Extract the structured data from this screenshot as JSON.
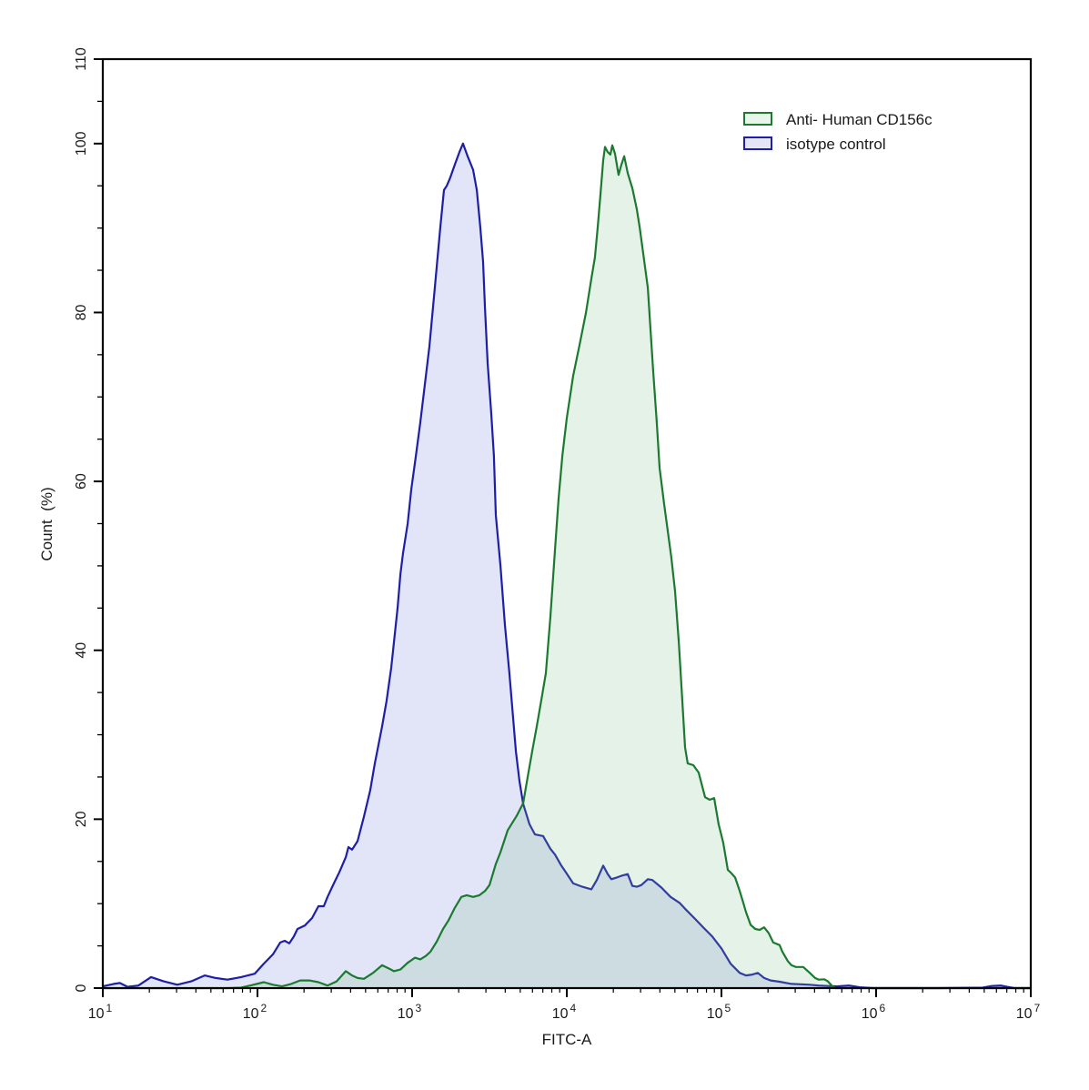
{
  "chart_data": {
    "type": "area",
    "title": "",
    "xlabel": "FITC-A",
    "ylabel": "Count  (%)",
    "x_scale": "log",
    "x_log10_range": [
      1,
      7
    ],
    "x_decade_ticks": [
      1,
      2,
      3,
      4,
      5,
      6,
      7
    ],
    "x_tick_base": "10",
    "ylim": [
      0,
      110
    ],
    "y_labeled_ticks": [
      0,
      20,
      40,
      60,
      80,
      100,
      110
    ],
    "y_minor_step": 5,
    "grid": false,
    "frame_color": "#000000",
    "legend_position": "top-right",
    "legend": [
      {
        "label": "Anti- Human CD156c",
        "line_color": "#1c7a30",
        "swatch_fill": "#e9f4ea"
      },
      {
        "label": "isotype control",
        "line_color": "#1e1fa6",
        "swatch_fill": "#e4e6f8"
      }
    ],
    "series": [
      {
        "name": "isotype control",
        "line_color": "#1e1fa6",
        "fill_color": "rgba(110,118,222,0.20)",
        "points_log10x_pct": [
          [
            1.0,
            0.2
          ],
          [
            1.071,
            0.5
          ],
          [
            1.11,
            0.6
          ],
          [
            1.16,
            0.15
          ],
          [
            1.23,
            0.3
          ],
          [
            1.312,
            1.3
          ],
          [
            1.394,
            0.8
          ],
          [
            1.482,
            0.4
          ],
          [
            1.571,
            0.8
          ],
          [
            1.659,
            1.5
          ],
          [
            1.729,
            1.2
          ],
          [
            1.806,
            1.0
          ],
          [
            1.894,
            1.3
          ],
          [
            1.982,
            1.7
          ],
          [
            2.041,
            2.9
          ],
          [
            2.1,
            4.0
          ],
          [
            2.147,
            5.4
          ],
          [
            2.176,
            5.6
          ],
          [
            2.206,
            5.3
          ],
          [
            2.235,
            6.1
          ],
          [
            2.259,
            7.0
          ],
          [
            2.306,
            7.4
          ],
          [
            2.353,
            8.3
          ],
          [
            2.394,
            9.7
          ],
          [
            2.429,
            9.7
          ],
          [
            2.453,
            10.8
          ],
          [
            2.494,
            12.4
          ],
          [
            2.529,
            13.7
          ],
          [
            2.571,
            15.5
          ],
          [
            2.588,
            16.7
          ],
          [
            2.612,
            16.4
          ],
          [
            2.647,
            17.4
          ],
          [
            2.688,
            20.3
          ],
          [
            2.729,
            23.4
          ],
          [
            2.759,
            26.6
          ],
          [
            2.806,
            31.0
          ],
          [
            2.835,
            34.0
          ],
          [
            2.865,
            38.0
          ],
          [
            2.906,
            45.0
          ],
          [
            2.924,
            49.0
          ],
          [
            2.941,
            51.5
          ],
          [
            2.971,
            55.0
          ],
          [
            2.994,
            59.0
          ],
          [
            3.024,
            63.0
          ],
          [
            3.053,
            67.0
          ],
          [
            3.076,
            70.5
          ],
          [
            3.112,
            76.0
          ],
          [
            3.147,
            83.0
          ],
          [
            3.182,
            90.0
          ],
          [
            3.206,
            94.5
          ],
          [
            3.224,
            95.0
          ],
          [
            3.247,
            96.0
          ],
          [
            3.276,
            97.5
          ],
          [
            3.306,
            99.0
          ],
          [
            3.329,
            100.0
          ],
          [
            3.359,
            98.5
          ],
          [
            3.394,
            96.9
          ],
          [
            3.418,
            94.5
          ],
          [
            3.441,
            90.0
          ],
          [
            3.459,
            86.0
          ],
          [
            3.471,
            80.5
          ],
          [
            3.488,
            74.0
          ],
          [
            3.512,
            68.0
          ],
          [
            3.529,
            63.0
          ],
          [
            3.541,
            56.0
          ],
          [
            3.571,
            50.0
          ],
          [
            3.6,
            43.0
          ],
          [
            3.629,
            37.3
          ],
          [
            3.653,
            32.0
          ],
          [
            3.671,
            28.0
          ],
          [
            3.694,
            24.5
          ],
          [
            3.718,
            21.8
          ],
          [
            3.759,
            19.4
          ],
          [
            3.794,
            18.2
          ],
          [
            3.847,
            18.0
          ],
          [
            3.894,
            16.5
          ],
          [
            3.924,
            15.8
          ],
          [
            3.965,
            14.5
          ],
          [
            3.994,
            13.7
          ],
          [
            4.041,
            12.4
          ],
          [
            4.1,
            12.0
          ],
          [
            4.159,
            11.7
          ],
          [
            4.194,
            12.8
          ],
          [
            4.235,
            14.5
          ],
          [
            4.265,
            13.5
          ],
          [
            4.288,
            12.9
          ],
          [
            4.324,
            13.1
          ],
          [
            4.353,
            13.3
          ],
          [
            4.394,
            13.5
          ],
          [
            4.424,
            12.1
          ],
          [
            4.453,
            12.0
          ],
          [
            4.482,
            12.2
          ],
          [
            4.524,
            12.9
          ],
          [
            4.553,
            12.8
          ],
          [
            4.612,
            11.9
          ],
          [
            4.671,
            10.8
          ],
          [
            4.729,
            10.1
          ],
          [
            4.765,
            9.4
          ],
          [
            4.824,
            8.3
          ],
          [
            4.882,
            7.2
          ],
          [
            4.941,
            6.1
          ],
          [
            5.0,
            4.7
          ],
          [
            5.059,
            2.9
          ],
          [
            5.118,
            1.8
          ],
          [
            5.159,
            1.5
          ],
          [
            5.2,
            1.6
          ],
          [
            5.235,
            1.8
          ],
          [
            5.276,
            1.2
          ],
          [
            5.318,
            0.9
          ],
          [
            5.376,
            0.75
          ],
          [
            5.453,
            0.5
          ],
          [
            5.512,
            0.45
          ],
          [
            5.571,
            0.4
          ],
          [
            5.629,
            0.3
          ],
          [
            5.688,
            0.25
          ],
          [
            5.747,
            0.2
          ],
          [
            5.824,
            0.3
          ],
          [
            5.894,
            0.1
          ],
          [
            5.982,
            0.0
          ],
          [
            6.4,
            0.0
          ],
          [
            6.688,
            0.05
          ],
          [
            6.747,
            0.25
          ],
          [
            6.806,
            0.3
          ],
          [
            6.847,
            0.15
          ],
          [
            6.894,
            0.0
          ],
          [
            7.0,
            0.0
          ]
        ]
      },
      {
        "name": "Anti- Human CD156c",
        "line_color": "#1c7a30",
        "fill_color": "rgba(125,190,135,0.20)",
        "points_log10x_pct": [
          [
            1.0,
            0.0
          ],
          [
            1.8,
            0.0
          ],
          [
            1.894,
            0.05
          ],
          [
            1.953,
            0.3
          ],
          [
            2.041,
            0.7
          ],
          [
            2.1,
            0.4
          ],
          [
            2.159,
            0.2
          ],
          [
            2.218,
            0.5
          ],
          [
            2.276,
            0.9
          ],
          [
            2.335,
            0.9
          ],
          [
            2.394,
            0.7
          ],
          [
            2.453,
            0.3
          ],
          [
            2.512,
            0.8
          ],
          [
            2.571,
            2.0
          ],
          [
            2.612,
            1.5
          ],
          [
            2.647,
            1.2
          ],
          [
            2.688,
            1.1
          ],
          [
            2.747,
            1.8
          ],
          [
            2.806,
            2.7
          ],
          [
            2.853,
            2.3
          ],
          [
            2.882,
            2.0
          ],
          [
            2.924,
            2.2
          ],
          [
            2.971,
            3.0
          ],
          [
            3.018,
            3.6
          ],
          [
            3.053,
            3.4
          ],
          [
            3.088,
            3.8
          ],
          [
            3.118,
            4.3
          ],
          [
            3.159,
            5.5
          ],
          [
            3.2,
            7.0
          ],
          [
            3.235,
            8.0
          ],
          [
            3.276,
            9.5
          ],
          [
            3.318,
            10.8
          ],
          [
            3.353,
            11.0
          ],
          [
            3.394,
            10.8
          ],
          [
            3.435,
            11.0
          ],
          [
            3.471,
            11.5
          ],
          [
            3.5,
            12.2
          ],
          [
            3.541,
            14.7
          ],
          [
            3.571,
            16.1
          ],
          [
            3.618,
            18.7
          ],
          [
            3.676,
            20.4
          ],
          [
            3.718,
            21.9
          ],
          [
            3.747,
            25.0
          ],
          [
            3.776,
            28.0
          ],
          [
            3.806,
            31.0
          ],
          [
            3.835,
            34.1
          ],
          [
            3.865,
            37.3
          ],
          [
            3.894,
            44.0
          ],
          [
            3.924,
            52.0
          ],
          [
            3.947,
            58.0
          ],
          [
            3.971,
            63.0
          ],
          [
            4.0,
            67.5
          ],
          [
            4.041,
            72.5
          ],
          [
            4.082,
            76.1
          ],
          [
            4.124,
            80.0
          ],
          [
            4.159,
            84.0
          ],
          [
            4.182,
            86.5
          ],
          [
            4.2,
            90.1
          ],
          [
            4.218,
            94.1
          ],
          [
            4.235,
            98.0
          ],
          [
            4.247,
            99.6
          ],
          [
            4.265,
            99.0
          ],
          [
            4.282,
            98.7
          ],
          [
            4.294,
            99.8
          ],
          [
            4.312,
            98.8
          ],
          [
            4.335,
            96.3
          ],
          [
            4.353,
            97.5
          ],
          [
            4.371,
            98.5
          ],
          [
            4.394,
            96.5
          ],
          [
            4.424,
            94.7
          ],
          [
            4.453,
            92.2
          ],
          [
            4.471,
            90.1
          ],
          [
            4.494,
            87.0
          ],
          [
            4.524,
            82.9
          ],
          [
            4.541,
            78.0
          ],
          [
            4.559,
            73.0
          ],
          [
            4.582,
            67.0
          ],
          [
            4.6,
            61.6
          ],
          [
            4.629,
            57.4
          ],
          [
            4.676,
            51.0
          ],
          [
            4.7,
            47.0
          ],
          [
            4.724,
            41.0
          ],
          [
            4.747,
            34.0
          ],
          [
            4.765,
            28.5
          ],
          [
            4.782,
            26.6
          ],
          [
            4.818,
            26.4
          ],
          [
            4.853,
            25.5
          ],
          [
            4.894,
            22.6
          ],
          [
            4.924,
            22.3
          ],
          [
            4.953,
            22.5
          ],
          [
            4.982,
            19.4
          ],
          [
            5.012,
            17.2
          ],
          [
            5.041,
            14.0
          ],
          [
            5.059,
            13.7
          ],
          [
            5.088,
            13.1
          ],
          [
            5.118,
            11.5
          ],
          [
            5.141,
            10.1
          ],
          [
            5.159,
            9.0
          ],
          [
            5.188,
            7.5
          ],
          [
            5.218,
            7.0
          ],
          [
            5.247,
            6.9
          ],
          [
            5.276,
            7.2
          ],
          [
            5.306,
            6.5
          ],
          [
            5.335,
            5.4
          ],
          [
            5.376,
            5.1
          ],
          [
            5.394,
            4.3
          ],
          [
            5.429,
            3.2
          ],
          [
            5.453,
            2.7
          ],
          [
            5.482,
            2.5
          ],
          [
            5.529,
            2.5
          ],
          [
            5.571,
            1.8
          ],
          [
            5.606,
            1.2
          ],
          [
            5.629,
            1.0
          ],
          [
            5.665,
            1.05
          ],
          [
            5.688,
            0.8
          ],
          [
            5.718,
            0.2
          ],
          [
            5.735,
            0.0
          ],
          [
            7.0,
            0.0
          ]
        ]
      }
    ]
  }
}
